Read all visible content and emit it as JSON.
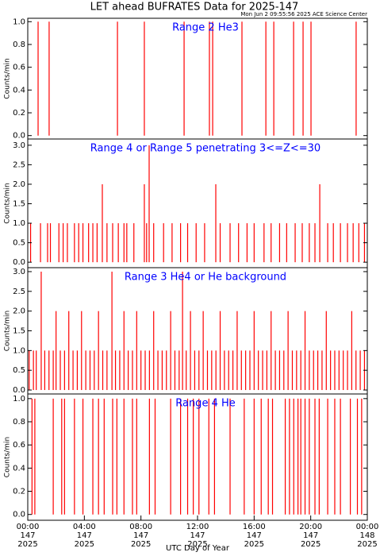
{
  "title": "LET ahead BUFRATES Data for 2025-147",
  "timestamp": "Mon Jun  2 09:55:56 2025 ACE Science Center",
  "x_label": "UTC Day of Year",
  "chart_data": [
    {
      "type": "spike",
      "title": "Range 2 He3",
      "y_label": "Counts/min",
      "color": "#ff0000",
      "x": [
        0.73,
        1.51,
        6.34,
        8.24,
        11.05,
        12.84,
        13.07,
        15.14,
        16.83,
        17.39,
        18.79,
        19.46,
        20.02,
        23.21
      ],
      "values": [
        1,
        1,
        1,
        1,
        1,
        1,
        1,
        1,
        1,
        1,
        1,
        1,
        1,
        1
      ],
      "xlim": [
        0,
        24
      ],
      "ylim": [
        -0.03,
        1.03
      ],
      "yticks": [
        {
          "value": 0,
          "label": "0.0"
        },
        {
          "value": 0.2,
          "label": "0.2"
        },
        {
          "value": 0.4,
          "label": "0.4"
        },
        {
          "value": 0.6,
          "label": "0.6"
        },
        {
          "value": 0.8,
          "label": "0.8"
        },
        {
          "value": 1,
          "label": "1.0"
        }
      ]
    },
    {
      "type": "spike",
      "title": "Range 4 or Range 5 penetrating 3<=Z<=30",
      "y_label": "Counts/min",
      "color": "#ff0000",
      "x": [
        0.2,
        0.9,
        1.4,
        1.6,
        2.2,
        2.5,
        2.8,
        3.3,
        3.6,
        3.9,
        4.3,
        4.6,
        4.9,
        5.27,
        5.6,
        6.0,
        6.4,
        6.8,
        7.0,
        7.5,
        8.24,
        8.4,
        8.58,
        8.9,
        9.6,
        10.2,
        10.8,
        11.3,
        11.9,
        12.5,
        13.29,
        13.6,
        14.3,
        14.9,
        15.5,
        16.0,
        16.7,
        17.2,
        17.8,
        18.3,
        18.9,
        19.4,
        19.9,
        20.3,
        20.64,
        21.2,
        21.6,
        22.1,
        22.6,
        23.0,
        23.4,
        23.8
      ],
      "values": [
        1,
        1,
        1,
        1,
        1,
        1,
        1,
        1,
        1,
        1,
        1,
        1,
        1,
        2,
        1,
        1,
        1,
        1,
        1,
        1,
        2,
        1,
        3,
        1,
        1,
        1,
        1,
        1,
        1,
        1,
        2,
        1,
        1,
        1,
        1,
        1,
        1,
        1,
        1,
        1,
        1,
        1,
        1,
        1,
        2,
        1,
        1,
        1,
        1,
        1,
        1,
        1
      ],
      "xlim": [
        0,
        24
      ],
      "ylim": [
        -0.14,
        3.16
      ],
      "yticks": [
        {
          "value": 0,
          "label": "0.0"
        },
        {
          "value": 0.5,
          "label": "0.5"
        },
        {
          "value": 1,
          "label": "1.0"
        },
        {
          "value": 1.5,
          "label": "1.5"
        },
        {
          "value": 2,
          "label": "2.0"
        },
        {
          "value": 2.5,
          "label": "2.5"
        },
        {
          "value": 3,
          "label": "3.0"
        }
      ]
    },
    {
      "type": "spike",
      "title": "Range 3 He4 or He background",
      "y_label": "Counts/min",
      "color": "#ff0000",
      "x": [
        0.1,
        0.4,
        0.6,
        0.95,
        1.2,
        1.5,
        1.8,
        2.0,
        2.3,
        2.6,
        2.9,
        3.2,
        3.5,
        3.8,
        4.1,
        4.4,
        4.7,
        5.0,
        5.3,
        5.6,
        5.95,
        6.2,
        6.5,
        6.8,
        7.1,
        7.4,
        7.7,
        8.0,
        8.3,
        8.6,
        8.9,
        9.2,
        9.5,
        9.8,
        10.1,
        10.4,
        10.7,
        10.94,
        11.2,
        11.5,
        11.8,
        12.1,
        12.4,
        12.7,
        13.0,
        13.3,
        13.6,
        13.9,
        14.2,
        14.5,
        14.8,
        15.1,
        15.4,
        15.7,
        16.0,
        16.3,
        16.6,
        16.9,
        17.2,
        17.5,
        17.8,
        18.1,
        18.4,
        18.7,
        19.0,
        19.3,
        19.6,
        19.9,
        20.2,
        20.5,
        20.8,
        21.1,
        21.4,
        21.7,
        22.0,
        22.3,
        22.6,
        22.9,
        23.2,
        23.5,
        23.8
      ],
      "values": [
        1,
        1,
        1,
        3,
        1,
        1,
        1,
        2,
        1,
        1,
        2,
        1,
        1,
        2,
        1,
        1,
        1,
        2,
        1,
        1,
        3,
        1,
        1,
        2,
        1,
        1,
        2,
        1,
        1,
        1,
        2,
        1,
        1,
        1,
        2,
        1,
        1,
        3,
        1,
        2,
        1,
        1,
        2,
        1,
        1,
        1,
        2,
        1,
        1,
        1,
        2,
        1,
        1,
        1,
        2,
        1,
        1,
        1,
        2,
        1,
        1,
        1,
        2,
        1,
        1,
        1,
        2,
        1,
        1,
        1,
        1,
        2,
        1,
        1,
        1,
        1,
        1,
        2,
        1,
        1,
        1
      ],
      "xlim": [
        0,
        24
      ],
      "ylim": [
        -0.1,
        3.1
      ],
      "yticks": [
        {
          "value": 0,
          "label": "0.0"
        },
        {
          "value": 0.5,
          "label": "0.5"
        },
        {
          "value": 1,
          "label": "1.0"
        },
        {
          "value": 1.5,
          "label": "1.5"
        },
        {
          "value": 2,
          "label": "2.0"
        },
        {
          "value": 2.5,
          "label": "2.5"
        },
        {
          "value": 3,
          "label": "3.0"
        }
      ]
    },
    {
      "type": "spike",
      "title": "Range 4 He",
      "y_label": "Counts/min",
      "color": "#ff0000",
      "x": [
        0.3,
        0.5,
        1.8,
        2.4,
        2.6,
        3.3,
        3.9,
        4.6,
        5.0,
        5.4,
        6.0,
        6.3,
        6.8,
        7.4,
        7.7,
        8.6,
        9.0,
        10.1,
        10.8,
        11.3,
        11.7,
        12.1,
        12.8,
        13.2,
        14.3,
        15.3,
        16.0,
        16.5,
        17.0,
        17.3,
        18.2,
        18.5,
        18.8,
        19.1,
        19.3,
        19.6,
        19.9,
        20.3,
        20.6,
        21.2,
        21.7,
        22.1,
        22.8,
        23.3,
        23.6
      ],
      "values": [
        1,
        1,
        1,
        1,
        1,
        1,
        1,
        1,
        1,
        1,
        1,
        1,
        1,
        1,
        1,
        1,
        1,
        1,
        1,
        1,
        1,
        1,
        1,
        1,
        1,
        1,
        1,
        1,
        1,
        1,
        1,
        1,
        1,
        1,
        1,
        1,
        1,
        1,
        1,
        1,
        1,
        1,
        1,
        1,
        1
      ],
      "xlim": [
        0,
        24
      ],
      "ylim": [
        -0.05,
        1.04
      ],
      "yticks": [
        {
          "value": 0,
          "label": "0.0"
        },
        {
          "value": 0.2,
          "label": "0.2"
        },
        {
          "value": 0.4,
          "label": "0.4"
        },
        {
          "value": 0.6,
          "label": "0.6"
        },
        {
          "value": 0.8,
          "label": "0.8"
        },
        {
          "value": 1,
          "label": "1.0"
        }
      ],
      "xticks": [
        {
          "value": 0,
          "label": "00:00",
          "day": "147",
          "year": "2025"
        },
        {
          "value": 4,
          "label": "04:00",
          "day": "147",
          "year": "2025"
        },
        {
          "value": 8,
          "label": "08:00",
          "day": "147",
          "year": "2025"
        },
        {
          "value": 12,
          "label": "12:00",
          "day": "147",
          "year": "2025"
        },
        {
          "value": 16,
          "label": "16:00",
          "day": "147",
          "year": "2025"
        },
        {
          "value": 20,
          "label": "20:00",
          "day": "147",
          "year": "2025"
        },
        {
          "value": 24,
          "label": "00:00",
          "day": "148",
          "year": "2025"
        }
      ]
    }
  ]
}
